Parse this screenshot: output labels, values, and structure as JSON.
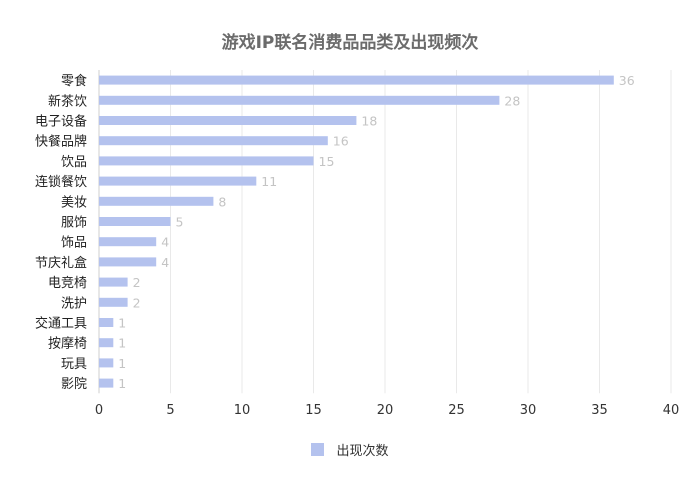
{
  "chart_data": {
    "type": "bar",
    "orientation": "horizontal",
    "title": "游戏IP联名消费品品类及出现频次",
    "categories": [
      "零食",
      "新茶饮",
      "电子设备",
      "快餐品牌",
      "饮品",
      "连锁餐饮",
      "美妆",
      "服饰",
      "饰品",
      "节庆礼盒",
      "电竞椅",
      "洗护",
      "交通工具",
      "按摩椅",
      "玩具",
      "影院"
    ],
    "series": [
      {
        "name": "出现次数",
        "values": [
          36,
          28,
          18,
          16,
          15,
          11,
          8,
          5,
          4,
          4,
          2,
          2,
          1,
          1,
          1,
          1
        ]
      }
    ],
    "xlim": [
      0,
      40
    ],
    "xticks": [
      0,
      5,
      10,
      15,
      20,
      25,
      30,
      35,
      40
    ],
    "grid": true,
    "legend_position": "bottom-center",
    "bar_color": "#b4c2ee"
  }
}
